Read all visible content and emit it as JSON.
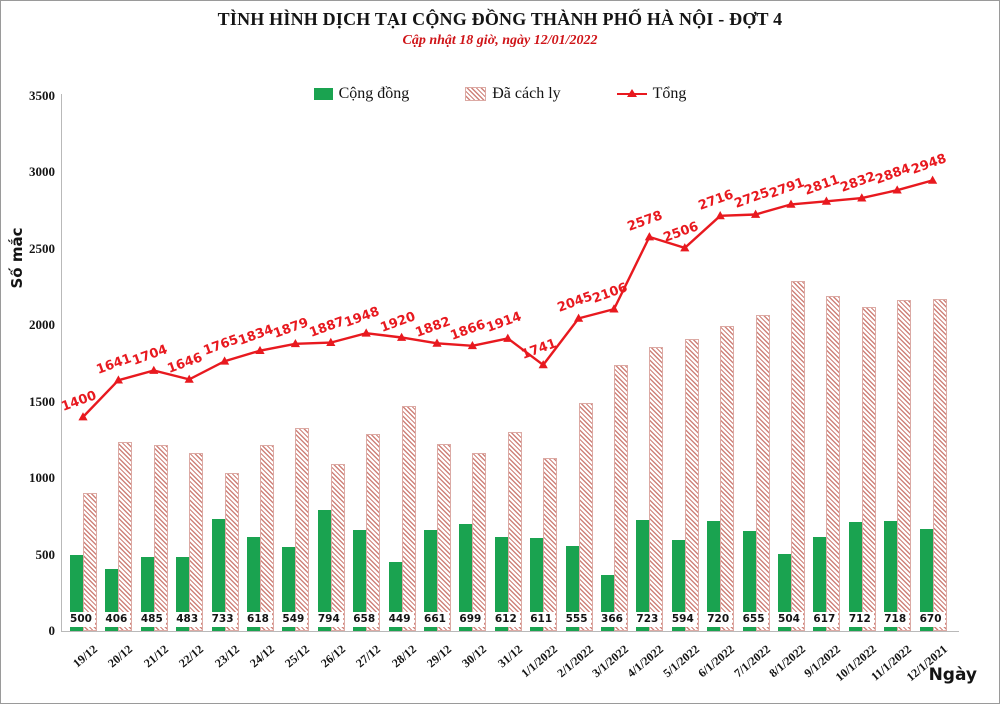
{
  "header": {
    "title": "TÌNH HÌNH DỊCH TẠI CỘNG ĐỒNG THÀNH PHỐ HÀ NỘI - ĐỢT 4",
    "subtitle": "Cập nhật 18 giờ, ngày 12/01/2022"
  },
  "legend": [
    {
      "label": "Cộng đồng",
      "swatch": "green-solid-square",
      "color": "#1aa350"
    },
    {
      "label": "Đã cách ly",
      "swatch": "red-hatched-square",
      "color": "#cf837b"
    },
    {
      "label": "Tổng",
      "swatch": "red-line-triangle-marker",
      "color": "#e8191f"
    }
  ],
  "axes": {
    "y_title": "Số mắc",
    "x_title": "Ngày",
    "y_ticks": [
      0,
      500,
      1000,
      1500,
      2000,
      2500,
      3000,
      3500
    ],
    "ylim": [
      0,
      3500
    ]
  },
  "chart_data": {
    "type": "bar+line",
    "title": "TÌNH HÌNH DỊCH TẠI CỘNG ĐỒNG THÀNH PHỐ HÀ NỘI - ĐỢT 4",
    "subtitle": "Cập nhật 18 giờ, ngày 12/01/2022",
    "xlabel": "Ngày",
    "ylabel": "Số mắc",
    "ylim": [
      0,
      3500
    ],
    "grid": false,
    "legend_position": "top",
    "categories": [
      "19/12",
      "20/12",
      "21/12",
      "22/12",
      "23/12",
      "24/12",
      "25/12",
      "26/12",
      "27/12",
      "28/12",
      "29/12",
      "30/12",
      "31/12",
      "1/1/2022",
      "2/1/2022",
      "3/1/2022",
      "4/1/2022",
      "5/1/2022",
      "6/1/2022",
      "7/1/2022",
      "8/1/2022",
      "9/1/2022",
      "10/1/2022",
      "11/1/2022",
      "12/1/2021"
    ],
    "series": [
      {
        "name": "Cộng đồng",
        "type": "bar",
        "style": "solid",
        "color": "#1aa350",
        "labels_shown": true,
        "values": [
          500,
          406,
          485,
          483,
          733,
          618,
          549,
          794,
          658,
          449,
          661,
          699,
          612,
          611,
          555,
          366,
          723,
          594,
          720,
          655,
          504,
          617,
          712,
          718,
          670
        ]
      },
      {
        "name": "Đã cách ly",
        "type": "bar",
        "style": "hatched",
        "color": "#cf837b",
        "labels_shown": false,
        "values": [
          900,
          1235,
          1219,
          1163,
          1032,
          1216,
          1330,
          1093,
          1290,
          1471,
          1221,
          1167,
          1302,
          1130,
          1490,
          1740,
          1855,
          1912,
          1996,
          2070,
          2287,
          2194,
          2120,
          2166,
          2170
        ]
      },
      {
        "name": "Tổng",
        "type": "line",
        "marker": "triangle",
        "color": "#e8191f",
        "labels_shown": true,
        "values": [
          1400,
          1641,
          1704,
          1646,
          1765,
          1834,
          1879,
          1887,
          1948,
          1920,
          1882,
          1866,
          1914,
          1741,
          2045,
          2106,
          2578,
          2506,
          2716,
          2725,
          2791,
          2811,
          2832,
          2884,
          2948
        ]
      }
    ]
  }
}
